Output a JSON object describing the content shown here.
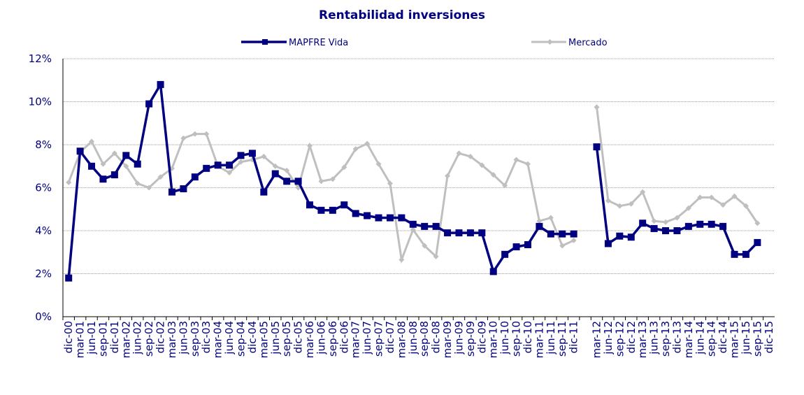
{
  "chart_data": {
    "type": "line",
    "title": "Rentabilidad inversiones",
    "categories": [
      "dic-00",
      "mar-01",
      "jun-01",
      "sep-01",
      "dic-01",
      "mar-02",
      "jun-02",
      "sep-02",
      "dic-02",
      "mar-03",
      "jun-03",
      "sep-03",
      "dic-03",
      "mar-04",
      "jun-04",
      "sep-04",
      "dic-04",
      "mar-05",
      "jun-05",
      "sep-05",
      "dic-05",
      "mar-06",
      "jun-06",
      "sep-06",
      "dic-06",
      "mar-07",
      "jun-07",
      "sep-07",
      "dic-07",
      "mar-08",
      "jun-08",
      "sep-08",
      "dic-08",
      "mar-09",
      "jun-09",
      "sep-09",
      "dic-09",
      "mar-10",
      "jun-10",
      "sep-10",
      "dic-10",
      "mar-11",
      "jun-11",
      "sep-11",
      "dic-11",
      null,
      "mar-12",
      "jun-12",
      "sep-12",
      "dic-12",
      "mar-13",
      "jun-13",
      "sep-13",
      "dic-13",
      "mar-14",
      "jun-14",
      "sep-14",
      "dic-14",
      "mar-15",
      "jun-15",
      "sep-15",
      "dic-15"
    ],
    "series": [
      {
        "name": "MAPFRE Vida",
        "color": "#000080",
        "marker": "square",
        "values": [
          1.8,
          7.7,
          7.0,
          6.4,
          6.6,
          7.5,
          7.1,
          9.9,
          10.8,
          5.8,
          5.95,
          6.5,
          6.9,
          7.05,
          7.05,
          7.5,
          7.6,
          5.8,
          6.65,
          6.3,
          6.3,
          5.2,
          4.95,
          4.95,
          5.2,
          4.8,
          4.7,
          4.6,
          4.6,
          4.6,
          4.3,
          4.2,
          4.2,
          3.9,
          3.9,
          3.9,
          3.9,
          2.1,
          2.9,
          3.25,
          3.35,
          4.2,
          3.85,
          3.85,
          3.85,
          null,
          7.9,
          3.4,
          3.75,
          3.7,
          4.35,
          4.1,
          4.0,
          4.0,
          4.2,
          4.3,
          4.3,
          4.2,
          2.9,
          2.9,
          3.45,
          null
        ]
      },
      {
        "name": "Mercado",
        "color": "#bfbfbf",
        "marker": "diamond",
        "values": [
          6.25,
          7.65,
          8.15,
          7.1,
          7.6,
          7.0,
          6.2,
          6.0,
          6.5,
          6.9,
          8.3,
          8.5,
          8.5,
          7.0,
          6.7,
          7.2,
          7.3,
          7.45,
          7.0,
          6.8,
          6.0,
          7.95,
          6.3,
          6.4,
          6.95,
          7.8,
          8.05,
          7.1,
          6.2,
          2.65,
          4.05,
          3.3,
          2.8,
          6.55,
          7.6,
          7.45,
          7.05,
          6.6,
          6.1,
          7.3,
          7.1,
          4.45,
          4.6,
          3.3,
          3.55,
          null,
          9.75,
          5.4,
          5.15,
          5.25,
          5.8,
          4.45,
          4.4,
          4.6,
          5.05,
          5.55,
          5.55,
          5.2,
          5.6,
          5.15,
          4.35,
          null
        ]
      }
    ],
    "ylim": [
      0,
      12
    ],
    "yticks": [
      {
        "value": 0,
        "label": "0%"
      },
      {
        "value": 2,
        "label": "2%"
      },
      {
        "value": 4,
        "label": "4%"
      },
      {
        "value": 6,
        "label": "6%"
      },
      {
        "value": 8,
        "label": "8%"
      },
      {
        "value": 10,
        "label": "10%"
      },
      {
        "value": 12,
        "label": "12%"
      }
    ],
    "grid": true,
    "legend": "top"
  }
}
